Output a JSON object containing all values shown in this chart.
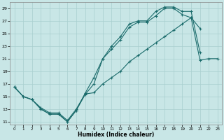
{
  "title": "",
  "xlabel": "Humidex (Indice chaleur)",
  "xlim": [
    -0.5,
    23.5
  ],
  "ylim": [
    10.5,
    30.0
  ],
  "xticks": [
    0,
    1,
    2,
    3,
    4,
    5,
    6,
    7,
    8,
    9,
    10,
    11,
    12,
    13,
    14,
    15,
    16,
    17,
    18,
    19,
    20,
    21,
    22,
    23
  ],
  "yticks": [
    11,
    13,
    15,
    17,
    19,
    21,
    23,
    25,
    27,
    29
  ],
  "bg_color": "#c8e6e6",
  "line_color": "#1a6b6b",
  "grid_color": "#a8cece",
  "line1_x": [
    0,
    1,
    2,
    3,
    4,
    5,
    6,
    7,
    8,
    9,
    10,
    11,
    12,
    13,
    14,
    15,
    16,
    17,
    18,
    19,
    20,
    21
  ],
  "line1_y": [
    16.5,
    15.0,
    14.5,
    13.0,
    12.2,
    12.2,
    11.0,
    12.8,
    15.5,
    18.0,
    21.0,
    23.0,
    24.5,
    26.5,
    27.0,
    27.0,
    28.5,
    29.2,
    29.2,
    28.5,
    28.5,
    22.0
  ],
  "line2_x": [
    0,
    1,
    2,
    3,
    4,
    5,
    6,
    7,
    8,
    9,
    10,
    11,
    12,
    13,
    14,
    15,
    16,
    17,
    18,
    19,
    20,
    21
  ],
  "line2_y": [
    16.5,
    15.0,
    14.5,
    13.0,
    12.2,
    12.2,
    11.0,
    12.8,
    15.3,
    17.0,
    21.0,
    22.5,
    24.0,
    26.0,
    26.8,
    26.8,
    27.8,
    29.0,
    29.0,
    28.0,
    27.5,
    25.8
  ],
  "line3_x": [
    0,
    1,
    2,
    3,
    4,
    5,
    6,
    7,
    8,
    9,
    10,
    11,
    12,
    13,
    14,
    15,
    16,
    17,
    18,
    19,
    20,
    21,
    22,
    23
  ],
  "line3_y": [
    16.5,
    15.0,
    14.5,
    13.2,
    12.4,
    12.4,
    11.2,
    13.0,
    15.4,
    15.6,
    17.0,
    18.0,
    19.0,
    20.5,
    21.5,
    22.5,
    23.5,
    24.5,
    25.5,
    26.5,
    27.5,
    20.8,
    21.0,
    21.0
  ],
  "marker": "+",
  "markersize": 3,
  "linewidth": 0.8
}
